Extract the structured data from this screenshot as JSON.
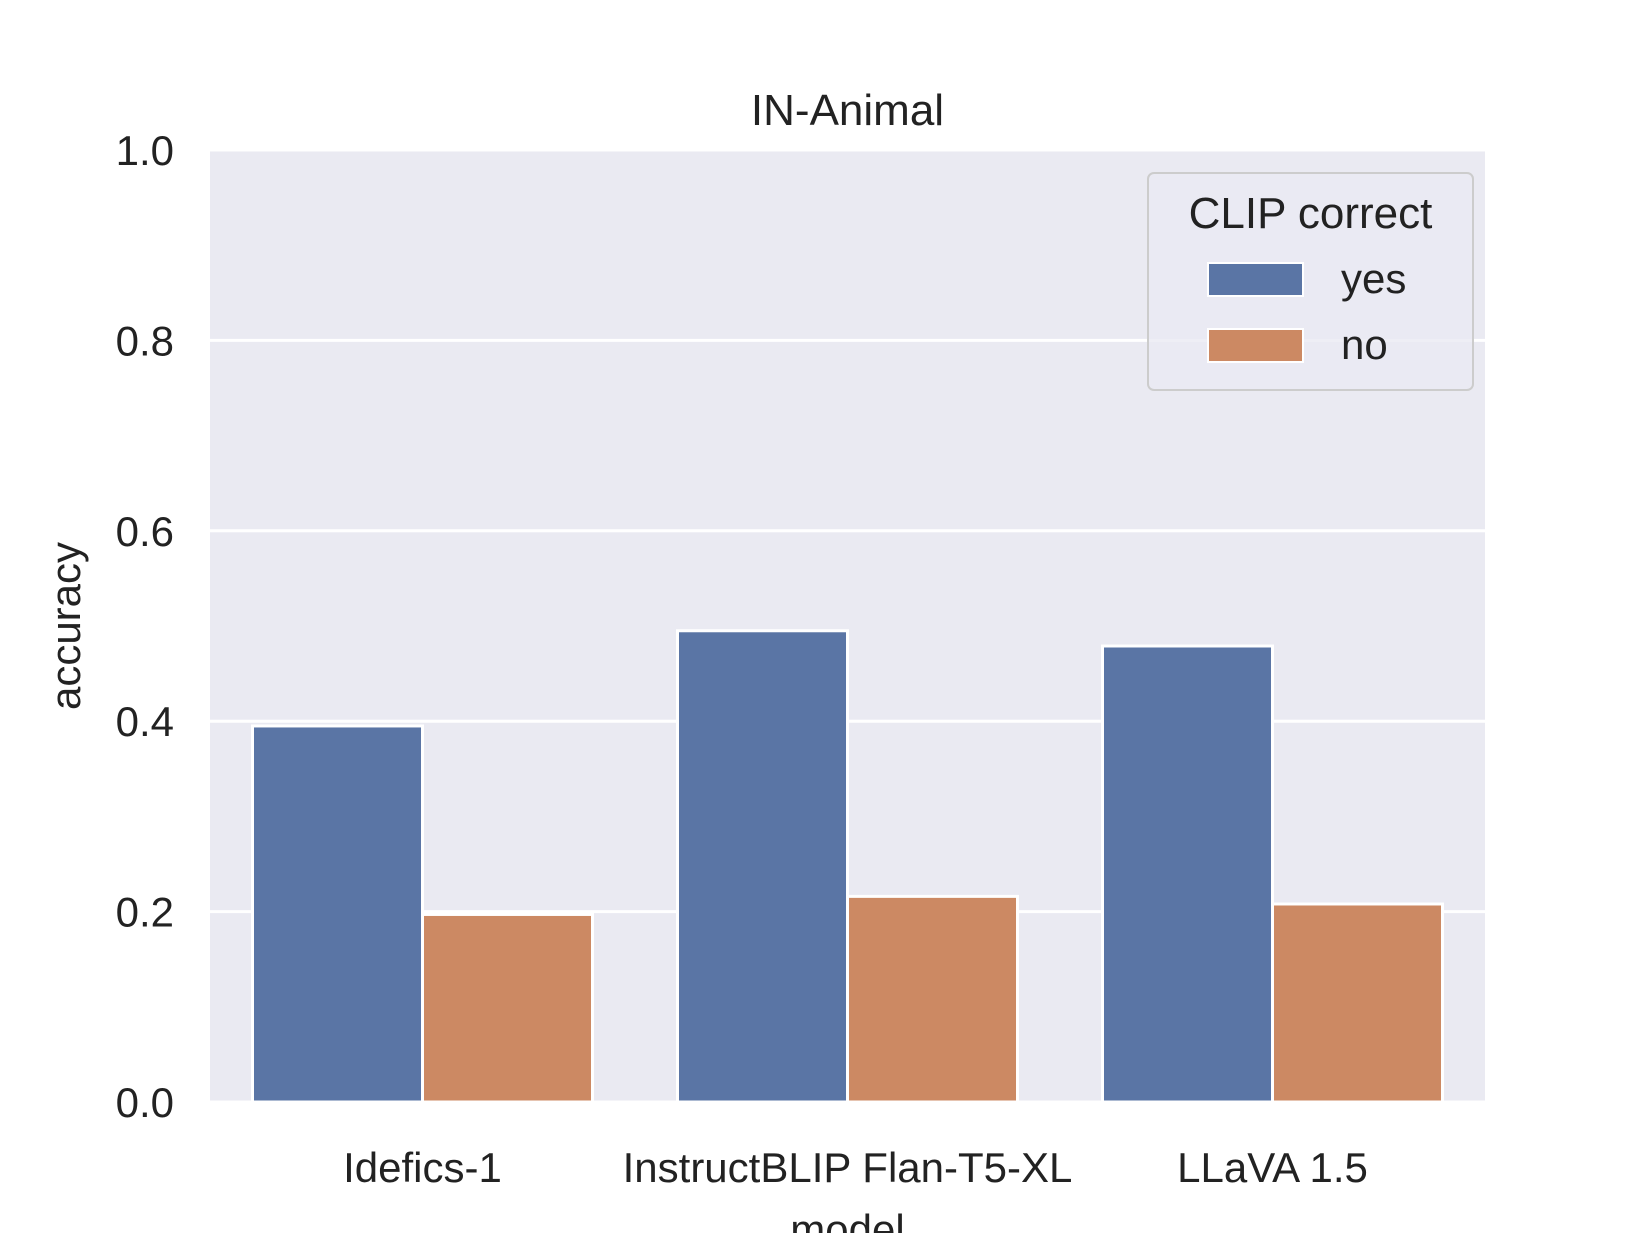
{
  "chart_data": {
    "type": "bar",
    "title": "IN-Animal",
    "xlabel": "model",
    "ylabel": "accuracy",
    "ylim": [
      0,
      1.0
    ],
    "yticks": [
      "0.0",
      "0.2",
      "0.4",
      "0.6",
      "0.8",
      "1.0"
    ],
    "categories": [
      "Idefics-1",
      "InstructBLIP Flan-T5-XL",
      "LLaVA 1.5"
    ],
    "series": [
      {
        "name": "yes",
        "values": [
          0.395,
          0.495,
          0.479
        ],
        "color": "#5a75a5"
      },
      {
        "name": "no",
        "values": [
          0.197,
          0.216,
          0.208
        ],
        "color": "#cc8963"
      }
    ],
    "legend": {
      "title": "CLIP correct",
      "position": "top-right"
    },
    "grid": true,
    "colors": {
      "plot_background": "#eaeaf2",
      "grid": "#ffffff",
      "text": "#222222"
    }
  }
}
